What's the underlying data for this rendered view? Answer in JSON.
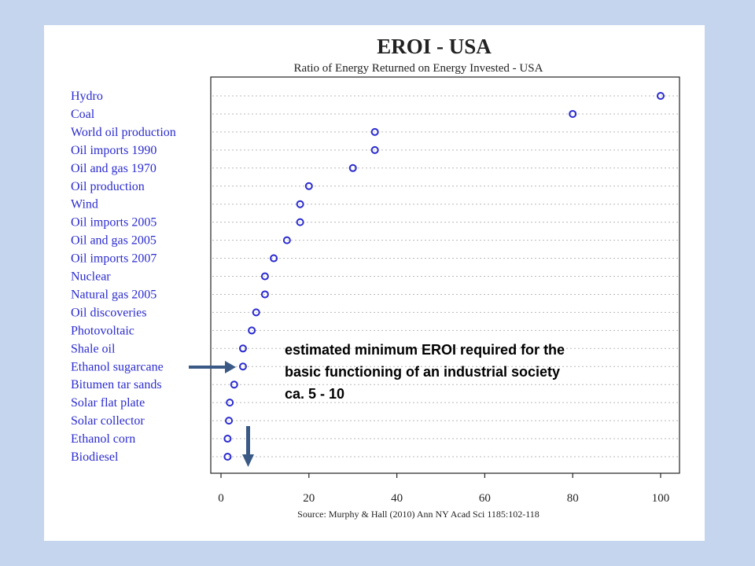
{
  "chart_data": {
    "type": "scatter",
    "title": "EROI - USA",
    "subtitle": "Ratio of Energy Returned on Energy Invested - USA",
    "categories": [
      "Hydro",
      "Coal",
      "World oil production",
      "Oil imports 1990",
      "Oil and gas 1970",
      "Oil production",
      "Wind",
      "Oil imports 2005",
      "Oil and gas 2005",
      "Oil imports 2007",
      "Nuclear",
      "Natural gas 2005",
      "Oil discoveries",
      "Photovoltaic",
      "Shale oil",
      "Ethanol sugarcane",
      "Bitumen tar sands",
      "Solar flat plate",
      "Solar collector",
      "Ethanol corn",
      "Biodiesel"
    ],
    "values": [
      100,
      80,
      35,
      35,
      30,
      20,
      18,
      18,
      15,
      12,
      10,
      10,
      8,
      7,
      5,
      5,
      3,
      2,
      1.8,
      1.5,
      1.5
    ],
    "xlim": [
      0,
      100
    ],
    "xticks": [
      "0",
      "20",
      "40",
      "60",
      "80",
      "100"
    ],
    "xlabel": "",
    "ylabel": "",
    "grid": true,
    "source": "Source: Murphy & Hall (2010) Ann NY Acad Sci 1185:102-118",
    "colors": {
      "markers": "#2b2bd0",
      "labels": "#2b2bd0",
      "arrows": "#3a5a85"
    }
  },
  "annotation": {
    "lines": [
      "estimated minimum EROI required for the",
      "basic functioning of an industrial society",
      "ca. 5 - 10"
    ]
  }
}
